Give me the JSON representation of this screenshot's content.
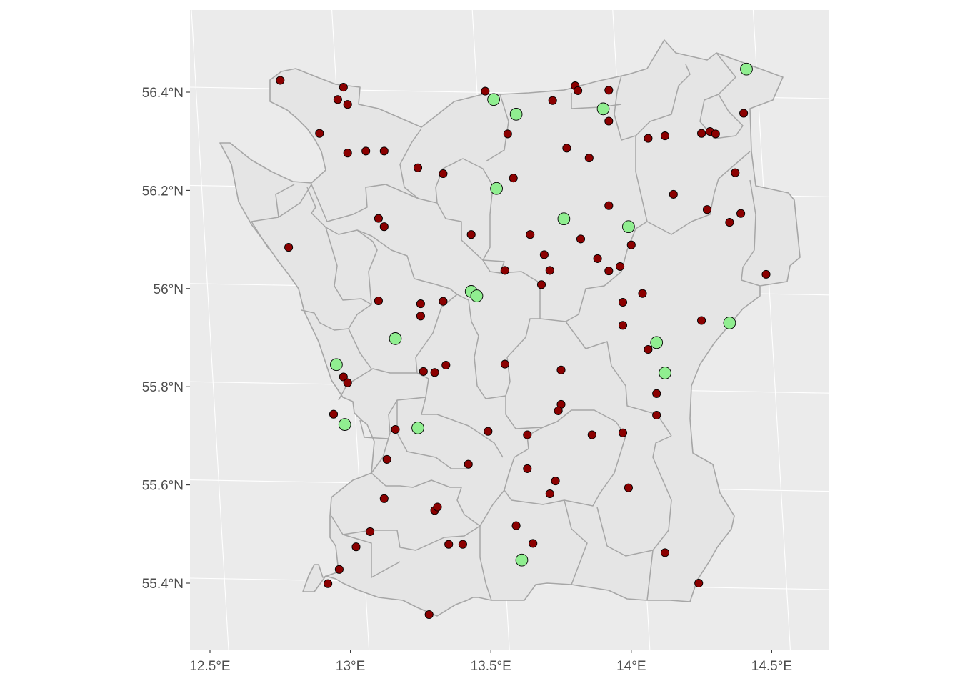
{
  "chart_data": {
    "type": "map",
    "title": "",
    "xlabel": "",
    "ylabel": "",
    "xlim": [
      12.43,
      14.7
    ],
    "ylim": [
      55.27,
      56.57
    ],
    "grid": true,
    "x_ticks": [
      {
        "value": 12.5,
        "label": "12.5°E"
      },
      {
        "value": 13.0,
        "label": "13°E"
      },
      {
        "value": 13.5,
        "label": "13.5°E"
      },
      {
        "value": 14.0,
        "label": "14°E"
      },
      {
        "value": 14.5,
        "label": "14.5°E"
      }
    ],
    "y_ticks": [
      {
        "value": 55.4,
        "label": "55.4°N"
      },
      {
        "value": 55.6,
        "label": "55.6°N"
      },
      {
        "value": 55.8,
        "label": "55.8°N"
      },
      {
        "value": 56.0,
        "label": "56°N"
      },
      {
        "value": 56.2,
        "label": "56.2°N"
      },
      {
        "value": 56.4,
        "label": "56.4°N"
      }
    ],
    "colors": {
      "panel_background": "#ebebeb",
      "region_fill": "#e5e5e5",
      "region_border": "#a6a6a6",
      "small_point_fill": "#8b0000",
      "large_point_fill": "#90ee90",
      "point_outline": "#000000",
      "axis_text": "#4d4d4d"
    },
    "series": [
      {
        "marker": "small-dark-red-circle",
        "points": [
          [
            12.75,
            56.424
          ],
          [
            12.975,
            56.41
          ],
          [
            12.955,
            56.385
          ],
          [
            12.99,
            56.375
          ],
          [
            12.89,
            56.316
          ],
          [
            12.99,
            56.276
          ],
          [
            13.055,
            56.28
          ],
          [
            13.12,
            56.28
          ],
          [
            12.78,
            56.084
          ],
          [
            13.1,
            56.143
          ],
          [
            13.12,
            56.126
          ],
          [
            13.1,
            55.975
          ],
          [
            13.25,
            55.969
          ],
          [
            13.25,
            55.944
          ],
          [
            13.33,
            55.974
          ],
          [
            13.26,
            55.831
          ],
          [
            13.3,
            55.829
          ],
          [
            13.34,
            55.844
          ],
          [
            12.975,
            55.82
          ],
          [
            12.99,
            55.808
          ],
          [
            12.94,
            55.744
          ],
          [
            13.16,
            55.713
          ],
          [
            13.13,
            55.652
          ],
          [
            13.12,
            55.572
          ],
          [
            13.07,
            55.505
          ],
          [
            13.02,
            55.474
          ],
          [
            12.96,
            55.428
          ],
          [
            12.92,
            55.399
          ],
          [
            13.3,
            55.548
          ],
          [
            13.31,
            55.555
          ],
          [
            13.35,
            55.479
          ],
          [
            13.4,
            55.479
          ],
          [
            13.28,
            55.336
          ],
          [
            13.42,
            55.642
          ],
          [
            13.49,
            55.709
          ],
          [
            13.43,
            56.11
          ],
          [
            13.24,
            56.246
          ],
          [
            13.33,
            56.234
          ],
          [
            13.48,
            56.402
          ],
          [
            13.56,
            56.315
          ],
          [
            13.58,
            56.225
          ],
          [
            13.72,
            56.383
          ],
          [
            13.8,
            56.413
          ],
          [
            13.81,
            56.403
          ],
          [
            13.92,
            56.404
          ],
          [
            13.92,
            56.341
          ],
          [
            13.77,
            56.286
          ],
          [
            13.85,
            56.266
          ],
          [
            13.92,
            56.169
          ],
          [
            13.64,
            56.11
          ],
          [
            13.82,
            56.101
          ],
          [
            13.69,
            56.069
          ],
          [
            13.71,
            56.037
          ],
          [
            13.55,
            56.037
          ],
          [
            13.68,
            56.008
          ],
          [
            13.88,
            56.061
          ],
          [
            13.92,
            56.036
          ],
          [
            13.96,
            56.045
          ],
          [
            14.0,
            56.089
          ],
          [
            13.97,
            55.972
          ],
          [
            13.97,
            55.925
          ],
          [
            14.04,
            55.99
          ],
          [
            14.06,
            56.306
          ],
          [
            14.12,
            56.311
          ],
          [
            14.15,
            56.192
          ],
          [
            14.25,
            56.316
          ],
          [
            14.28,
            56.32
          ],
          [
            14.3,
            56.315
          ],
          [
            14.4,
            56.357
          ],
          [
            14.37,
            56.236
          ],
          [
            14.27,
            56.161
          ],
          [
            14.35,
            56.135
          ],
          [
            14.39,
            56.153
          ],
          [
            14.48,
            56.029
          ],
          [
            14.25,
            55.935
          ],
          [
            14.06,
            55.876
          ],
          [
            14.09,
            55.786
          ],
          [
            14.09,
            55.742
          ],
          [
            13.97,
            55.706
          ],
          [
            13.99,
            55.594
          ],
          [
            14.12,
            55.462
          ],
          [
            14.24,
            55.4
          ],
          [
            13.86,
            55.702
          ],
          [
            13.75,
            55.764
          ],
          [
            13.74,
            55.751
          ],
          [
            13.75,
            55.834
          ],
          [
            13.55,
            55.846
          ],
          [
            13.63,
            55.702
          ],
          [
            13.63,
            55.633
          ],
          [
            13.73,
            55.608
          ],
          [
            13.71,
            55.582
          ],
          [
            13.59,
            55.517
          ],
          [
            13.65,
            55.481
          ]
        ]
      },
      {
        "marker": "large-light-green-circle",
        "points": [
          [
            14.41,
            56.447
          ],
          [
            13.51,
            56.385
          ],
          [
            13.59,
            56.355
          ],
          [
            13.9,
            56.366
          ],
          [
            13.52,
            56.204
          ],
          [
            13.76,
            56.142
          ],
          [
            13.99,
            56.126
          ],
          [
            13.43,
            55.994
          ],
          [
            13.45,
            55.985
          ],
          [
            13.16,
            55.898
          ],
          [
            12.95,
            55.845
          ],
          [
            12.98,
            55.723
          ],
          [
            13.24,
            55.716
          ],
          [
            14.09,
            55.89
          ],
          [
            14.12,
            55.828
          ],
          [
            14.35,
            55.93
          ],
          [
            13.61,
            55.447
          ]
        ]
      }
    ]
  }
}
